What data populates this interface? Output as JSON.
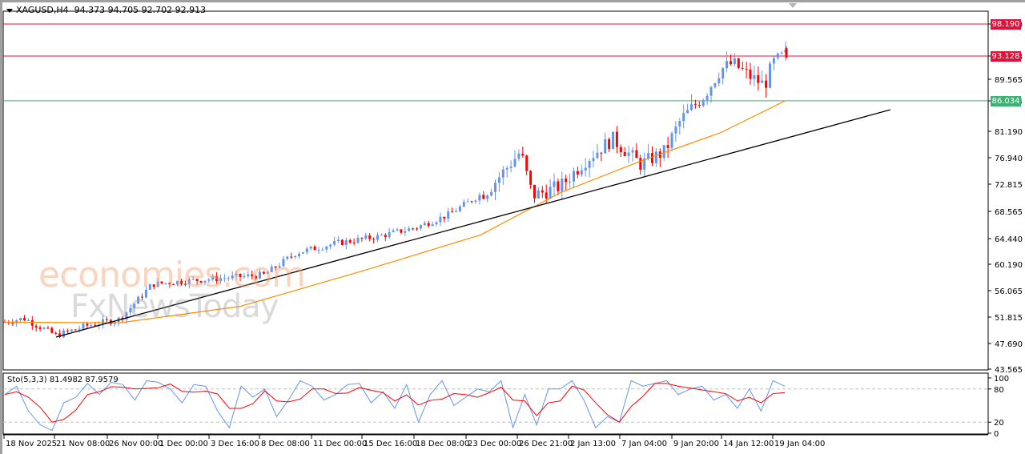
{
  "header": {
    "symbol": "XAGUSD,H4",
    "ohlc": "94.373 94.705 92.702 92.913"
  },
  "oscillator": {
    "label": "Sto(5,3,3) 81.4982 87.9579",
    "levels": [
      "100",
      "80",
      "20",
      "0"
    ]
  },
  "watermark": {
    "line1": "economies.com",
    "line2": "FxNewsToday"
  },
  "price_tags": [
    {
      "value": "98.190",
      "color": "#dc143c",
      "y": 30
    },
    {
      "value": "93.128",
      "color": "#dc143c",
      "y": 70
    },
    {
      "value": "86.034",
      "color": "#3cb371",
      "y": 126
    }
  ],
  "chart_data": [
    {
      "type": "candlestick",
      "title": "XAGUSD,H4",
      "ohlc_header": {
        "open": 94.373,
        "high": 94.705,
        "low": 92.702,
        "close": 92.913
      },
      "y_ticks": [
        "98.190",
        "93.128",
        "89.565",
        "86.034",
        "81.190",
        "76.940",
        "72.815",
        "68.565",
        "64.440",
        "60.190",
        "56.065",
        "51.815",
        "47.690",
        "43.565"
      ],
      "ylim": [
        43.565,
        99.5
      ],
      "x_ticks": [
        "18 Nov 2025",
        "21 Nov 08:00",
        "26 Nov 00:00",
        "1 Dec 00:00",
        "3 Dec 16:00",
        "8 Dec 08:00",
        "11 Dec 00:00",
        "15 Dec 16:00",
        "18 Dec 08:00",
        "23 Dec 00:00",
        "26 Dec 21:00",
        "2 Jan 13:00",
        "7 Jan 04:00",
        "9 Jan 20:00",
        "14 Jan 12:00",
        "19 Jan 04:00"
      ],
      "horizontal_lines": [
        {
          "value": 98.19,
          "color": "#dc143c"
        },
        {
          "value": 93.128,
          "color": "#dc143c"
        },
        {
          "value": 86.034,
          "color": "#3cb371"
        }
      ],
      "trendline": {
        "from": {
          "date": "20 Nov 2025",
          "price": 48.9
        },
        "to": {
          "date": "22 Jan 2026",
          "price": 84.2
        },
        "color": "#000000"
      },
      "moving_average": {
        "color": "#ff8c00",
        "approx_points": [
          [
            5,
            51.0
          ],
          [
            150,
            50.9
          ],
          [
            300,
            53.5
          ],
          [
            450,
            59.0
          ],
          [
            600,
            64.8
          ],
          [
            700,
            71.5
          ],
          [
            800,
            76.5
          ],
          [
            900,
            81.0
          ],
          [
            980,
            86.0
          ]
        ]
      },
      "bull_color": "#6495ed",
      "bear_color": "#ff0000",
      "trend": "strong uptrend from ~48.8 (21 Nov) to ~94.7 (20 Jan)"
    },
    {
      "type": "line",
      "title": "Sto(5,3,3)",
      "series": [
        {
          "name": "%K",
          "color": "#6495ed",
          "last": 81.4982
        },
        {
          "name": "%D",
          "color": "#ff0000",
          "last": 87.9579
        }
      ],
      "ylim": [
        0,
        100
      ],
      "levels": [
        20,
        80
      ]
    }
  ]
}
